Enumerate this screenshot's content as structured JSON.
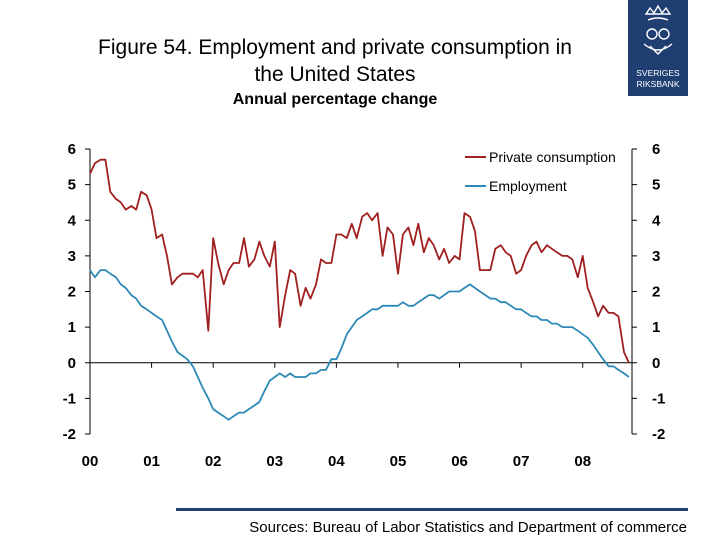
{
  "header": {
    "title_line1": "Figure 54. Employment and private consumption in",
    "title_line2": "the United States",
    "subtitle": "Annual percentage change"
  },
  "logo": {
    "line1": "SVERIGES",
    "line2": "RIKSBANK",
    "color": "#1f3f73"
  },
  "footer": {
    "source": "Sources: Bureau of Labor Statistics and Department of commerce"
  },
  "colors": {
    "consumption": "#a01f1f",
    "employment": "#2d89b5",
    "accent": "#1f3f73"
  },
  "chart_data": {
    "type": "line",
    "title": "Figure 54. Employment and private consumption in the United States",
    "subtitle": "Annual percentage change",
    "y_ticks_left": [
      "6",
      "5",
      "4",
      "3",
      "2",
      "1",
      "0",
      "-1",
      "-2"
    ],
    "y_ticks_right": [
      "6",
      "5",
      "4",
      "3",
      "2",
      "1",
      "0",
      "-1",
      "-2"
    ],
    "x_ticks": [
      "00",
      "01",
      "02",
      "03",
      "04",
      "05",
      "06",
      "07",
      "08"
    ],
    "ylim": [
      -2,
      6
    ],
    "xlim": [
      2000.0,
      2008.8
    ],
    "grid": false,
    "legend": "top-right",
    "series": [
      {
        "name": "Private consumption",
        "color": "#a01f1f",
        "x": [
          2000.0,
          2000.08,
          2000.17,
          2000.25,
          2000.33,
          2000.42,
          2000.5,
          2000.58,
          2000.67,
          2000.75,
          2000.83,
          2000.92,
          2001.0,
          2001.08,
          2001.17,
          2001.25,
          2001.33,
          2001.42,
          2001.5,
          2001.58,
          2001.67,
          2001.75,
          2001.83,
          2001.92,
          2002.0,
          2002.08,
          2002.17,
          2002.25,
          2002.33,
          2002.42,
          2002.5,
          2002.58,
          2002.67,
          2002.75,
          2002.83,
          2002.92,
          2003.0,
          2003.08,
          2003.17,
          2003.25,
          2003.33,
          2003.42,
          2003.5,
          2003.58,
          2003.67,
          2003.75,
          2003.83,
          2003.92,
          2004.0,
          2004.08,
          2004.17,
          2004.25,
          2004.33,
          2004.42,
          2004.5,
          2004.58,
          2004.67,
          2004.75,
          2004.83,
          2004.92,
          2005.0,
          2005.08,
          2005.17,
          2005.25,
          2005.33,
          2005.42,
          2005.5,
          2005.58,
          2005.67,
          2005.75,
          2005.83,
          2005.92,
          2006.0,
          2006.08,
          2006.17,
          2006.25,
          2006.33,
          2006.42,
          2006.5,
          2006.58,
          2006.67,
          2006.75,
          2006.83,
          2006.92,
          2007.0,
          2007.08,
          2007.17,
          2007.25,
          2007.33,
          2007.42,
          2007.5,
          2007.58,
          2007.67,
          2007.75,
          2007.83,
          2007.92,
          2008.0,
          2008.08,
          2008.17,
          2008.25,
          2008.33,
          2008.42,
          2008.5,
          2008.58,
          2008.67,
          2008.75
        ],
        "values": [
          5.3,
          5.6,
          5.7,
          5.7,
          4.8,
          4.6,
          4.5,
          4.3,
          4.4,
          4.3,
          4.8,
          4.7,
          4.3,
          3.5,
          3.6,
          3.0,
          2.2,
          2.4,
          2.5,
          2.5,
          2.5,
          2.4,
          2.6,
          0.9,
          3.5,
          2.8,
          2.2,
          2.6,
          2.8,
          2.8,
          3.5,
          2.7,
          2.9,
          3.4,
          3.0,
          2.7,
          3.4,
          1.0,
          1.9,
          2.6,
          2.5,
          1.6,
          2.1,
          1.8,
          2.2,
          2.9,
          2.8,
          2.8,
          3.6,
          3.6,
          3.5,
          3.9,
          3.5,
          4.1,
          4.2,
          4.0,
          4.2,
          3.0,
          3.8,
          3.6,
          2.5,
          3.6,
          3.8,
          3.3,
          3.9,
          3.1,
          3.5,
          3.3,
          2.9,
          3.2,
          2.8,
          3.0,
          2.9,
          4.2,
          4.1,
          3.7,
          2.6,
          2.6,
          2.6,
          3.2,
          3.3,
          3.1,
          3.0,
          2.5,
          2.6,
          3.0,
          3.3,
          3.4,
          3.1,
          3.3,
          3.2,
          3.1,
          3.0,
          3.0,
          2.9,
          2.4,
          3.0,
          2.1,
          1.7,
          1.3,
          1.6,
          1.4,
          1.4,
          1.3,
          0.3,
          0.0
        ]
      },
      {
        "name": "Employment",
        "color": "#2d89b5",
        "x": [
          2000.0,
          2000.08,
          2000.17,
          2000.25,
          2000.33,
          2000.42,
          2000.5,
          2000.58,
          2000.67,
          2000.75,
          2000.83,
          2000.92,
          2001.0,
          2001.08,
          2001.17,
          2001.25,
          2001.33,
          2001.42,
          2001.5,
          2001.58,
          2001.67,
          2001.75,
          2001.83,
          2001.92,
          2002.0,
          2002.08,
          2002.17,
          2002.25,
          2002.33,
          2002.42,
          2002.5,
          2002.58,
          2002.67,
          2002.75,
          2002.83,
          2002.92,
          2003.0,
          2003.08,
          2003.17,
          2003.25,
          2003.33,
          2003.42,
          2003.5,
          2003.58,
          2003.67,
          2003.75,
          2003.83,
          2003.92,
          2004.0,
          2004.08,
          2004.17,
          2004.25,
          2004.33,
          2004.42,
          2004.5,
          2004.58,
          2004.67,
          2004.75,
          2004.83,
          2004.92,
          2005.0,
          2005.08,
          2005.17,
          2005.25,
          2005.33,
          2005.42,
          2005.5,
          2005.58,
          2005.67,
          2005.75,
          2005.83,
          2005.92,
          2006.0,
          2006.08,
          2006.17,
          2006.25,
          2006.33,
          2006.42,
          2006.5,
          2006.58,
          2006.67,
          2006.75,
          2006.83,
          2006.92,
          2007.0,
          2007.08,
          2007.17,
          2007.25,
          2007.33,
          2007.42,
          2007.5,
          2007.58,
          2007.67,
          2007.75,
          2007.83,
          2007.92,
          2008.0,
          2008.08,
          2008.17,
          2008.25,
          2008.33,
          2008.42,
          2008.5,
          2008.58,
          2008.67,
          2008.75
        ],
        "values": [
          2.6,
          2.4,
          2.6,
          2.6,
          2.5,
          2.4,
          2.2,
          2.1,
          1.9,
          1.8,
          1.6,
          1.5,
          1.4,
          1.3,
          1.2,
          0.9,
          0.6,
          0.3,
          0.2,
          0.1,
          -0.1,
          -0.4,
          -0.7,
          -1.0,
          -1.3,
          -1.4,
          -1.5,
          -1.6,
          -1.5,
          -1.4,
          -1.4,
          -1.3,
          -1.2,
          -1.1,
          -0.8,
          -0.5,
          -0.4,
          -0.3,
          -0.4,
          -0.3,
          -0.4,
          -0.4,
          -0.4,
          -0.3,
          -0.3,
          -0.2,
          -0.2,
          0.1,
          0.1,
          0.4,
          0.8,
          1.0,
          1.2,
          1.3,
          1.4,
          1.5,
          1.5,
          1.6,
          1.6,
          1.6,
          1.6,
          1.7,
          1.6,
          1.6,
          1.7,
          1.8,
          1.9,
          1.9,
          1.8,
          1.9,
          2.0,
          2.0,
          2.0,
          2.1,
          2.2,
          2.1,
          2.0,
          1.9,
          1.8,
          1.8,
          1.7,
          1.7,
          1.6,
          1.5,
          1.5,
          1.4,
          1.3,
          1.3,
          1.2,
          1.2,
          1.1,
          1.1,
          1.0,
          1.0,
          1.0,
          0.9,
          0.8,
          0.7,
          0.5,
          0.3,
          0.1,
          -0.1,
          -0.1,
          -0.2,
          -0.3,
          -0.4
        ]
      }
    ]
  }
}
